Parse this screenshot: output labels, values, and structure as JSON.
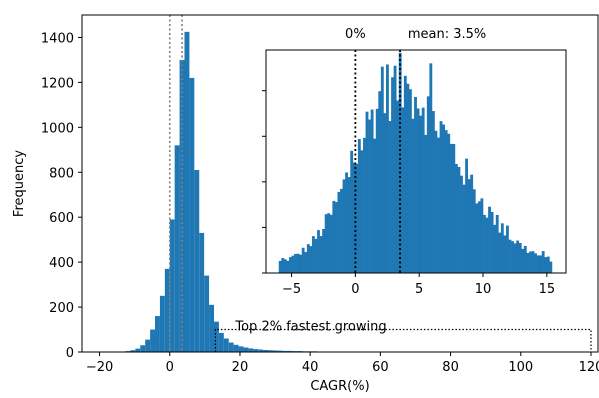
{
  "chart_data": {
    "type": "histogram",
    "xlabel": "CAGR(%)",
    "ylabel": "Frequency",
    "xlim": [
      -25,
      122
    ],
    "ylim": [
      0,
      1500
    ],
    "xticks": [
      -20,
      0,
      20,
      40,
      60,
      80,
      100,
      120
    ],
    "xtick_labels": [
      "−20",
      "0",
      "20",
      "40",
      "60",
      "80",
      "100",
      "120"
    ],
    "yticks": [
      0,
      200,
      400,
      600,
      800,
      1000,
      1200,
      1400
    ],
    "ytick_labels": [
      "0",
      "200",
      "400",
      "600",
      "800",
      "1000",
      "1200",
      "1400"
    ],
    "grid": false,
    "bar_color": "#1f77b4",
    "bin_width": 1.4,
    "bins": [
      [
        -14.0,
        2
      ],
      [
        -12.6,
        4
      ],
      [
        -11.2,
        8
      ],
      [
        -9.8,
        15
      ],
      [
        -8.4,
        30
      ],
      [
        -7.0,
        55
      ],
      [
        -5.6,
        100
      ],
      [
        -4.2,
        160
      ],
      [
        -2.8,
        250
      ],
      [
        -1.4,
        370
      ],
      [
        0.0,
        590
      ],
      [
        1.4,
        920
      ],
      [
        2.8,
        1300
      ],
      [
        4.2,
        1425
      ],
      [
        5.6,
        1220
      ],
      [
        7.0,
        810
      ],
      [
        8.4,
        530
      ],
      [
        9.8,
        340
      ],
      [
        11.2,
        210
      ],
      [
        12.6,
        135
      ],
      [
        14.0,
        85
      ],
      [
        15.4,
        60
      ],
      [
        16.8,
        42
      ],
      [
        18.2,
        32
      ],
      [
        19.6,
        25
      ],
      [
        21.0,
        20
      ],
      [
        22.4,
        16
      ],
      [
        23.8,
        13
      ],
      [
        25.2,
        11
      ],
      [
        26.6,
        9
      ],
      [
        28.0,
        8
      ],
      [
        29.4,
        7
      ],
      [
        30.8,
        6
      ],
      [
        32.2,
        5
      ],
      [
        33.6,
        5
      ],
      [
        35.0,
        4
      ],
      [
        36.4,
        4
      ],
      [
        37.8,
        3
      ],
      [
        39.2,
        3
      ],
      [
        40.6,
        3
      ],
      [
        42.0,
        2
      ],
      [
        43.4,
        2
      ],
      [
        44.8,
        2
      ],
      [
        46.2,
        2
      ],
      [
        47.6,
        2
      ],
      [
        49.0,
        1
      ],
      [
        50.4,
        1
      ],
      [
        51.8,
        1
      ],
      [
        53.2,
        1
      ],
      [
        54.6,
        1
      ],
      [
        56.0,
        1
      ],
      [
        58.8,
        1
      ],
      [
        61.6,
        1
      ],
      [
        64.4,
        1
      ],
      [
        67.2,
        1
      ],
      [
        70.0,
        1
      ],
      [
        72.8,
        1
      ],
      [
        75.6,
        1
      ],
      [
        78.4,
        1
      ]
    ],
    "reference_lines": [
      {
        "x": 0,
        "style": "dotted",
        "color": "#808080"
      },
      {
        "x": 3.5,
        "style": "dotted",
        "color": "#808080"
      }
    ],
    "annotation": {
      "text": "Top 2% fastest growing",
      "box_x": [
        13,
        120
      ],
      "box_y": [
        0,
        100
      ],
      "style": "dotted"
    },
    "inset": {
      "type": "histogram",
      "xlim": [
        -7,
        16.5
      ],
      "ylim": [
        0,
        230
      ],
      "xticks": [
        -5,
        0,
        5,
        10,
        15
      ],
      "xtick_labels": [
        "−5",
        "0",
        "5",
        "10",
        "15"
      ],
      "y_tick_values": [
        0,
        47,
        94,
        141,
        188
      ],
      "bin_width": 0.2,
      "lines": [
        {
          "x": 0,
          "label": "0%",
          "style": "dotted",
          "color": "#000000"
        },
        {
          "x": 3.5,
          "label": "mean: 3.5%",
          "style": "dotted",
          "color": "#000000"
        }
      ],
      "params": {
        "start": -6.0,
        "end": 15.4,
        "mean": 3.3,
        "peak": 185,
        "sigma_left": 3.3,
        "sigma_right": 4.6,
        "tail": 8
      }
    }
  }
}
